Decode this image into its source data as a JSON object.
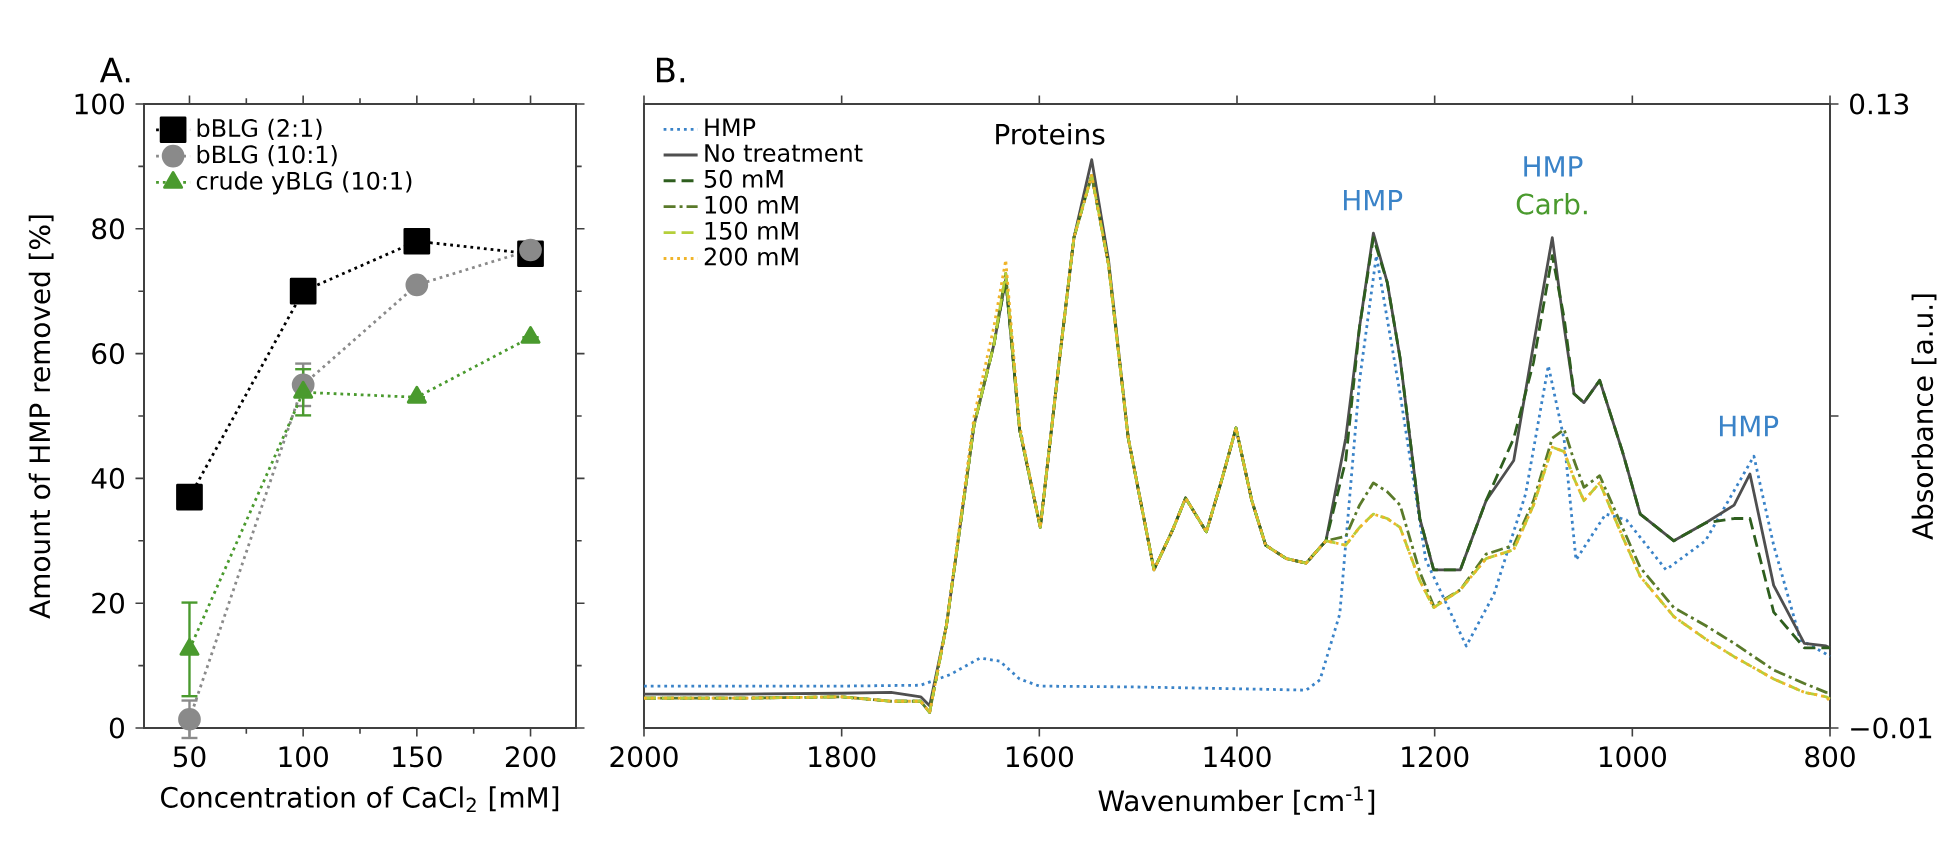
{
  "chart_data": [
    {
      "type": "line",
      "title": "A.",
      "xlabel": "Concentration of CaCl$_{2}$ [mM]",
      "ylabel": "Amount of HMP removed [%]",
      "xlim": [
        30,
        220
      ],
      "xticks": [
        50,
        100,
        150,
        200
      ],
      "ylim": [
        0,
        100
      ],
      "yticks": [
        0,
        20,
        40,
        60,
        80,
        100
      ],
      "legend": "top left",
      "line_style": "dotted",
      "series": [
        {
          "name": "bBLG (2:1)",
          "color": "#000000",
          "marker": "square",
          "x": [
            50,
            100,
            150,
            200
          ],
          "values": [
            37,
            70,
            78,
            76
          ]
        },
        {
          "name": "bBLG (10:1)",
          "color": "#8a8a8a",
          "marker": "circle",
          "x": [
            50,
            100,
            150,
            200
          ],
          "values": [
            1.4,
            55,
            71,
            76.6
          ],
          "errors": [
            3,
            3.4,
            null,
            null
          ]
        },
        {
          "name": "crude yBLG (10:1)",
          "color": "#4a9a2e",
          "marker": "triangle",
          "x": [
            50,
            100,
            150,
            200
          ],
          "values": [
            12.6,
            53.8,
            53,
            62.6
          ],
          "errors": [
            7.5,
            3.7,
            null,
            null
          ]
        }
      ]
    },
    {
      "type": "line",
      "title": "B.",
      "xlabel": "Wavenumber [cm$^{-1}$]",
      "y2label": "Absorbance [a.u.]",
      "xlim": [
        2000,
        800
      ],
      "xticks": [
        2000,
        1800,
        1600,
        1400,
        1200,
        1000,
        800
      ],
      "y2lim": [
        -0.01,
        0.13
      ],
      "y2ticks": [
        {
          "value": -0.01,
          "label": "−0.01"
        },
        {
          "value": 0.06,
          "label": null
        },
        0.13
      ],
      "legend": "top left",
      "annotations": [
        "Proteins",
        "HMP",
        "HMP",
        "Carb.",
        "HMP"
      ],
      "series": [
        {
          "name": "HMP",
          "color": "#3a83c8",
          "line_style": "dotted",
          "axis": "y2",
          "x": [
            2000,
            1800,
            1720,
            1690,
            1660,
            1640,
            1620,
            1600,
            1500,
            1400,
            1330,
            1316,
            1296,
            1276,
            1259,
            1235,
            1209,
            1168,
            1140,
            1108,
            1085,
            1069,
            1057,
            1027,
            1006,
            966,
            926,
            877,
            857,
            830,
            804,
            800
          ],
          "values": [
            -0.0006,
            -0.0006,
            -0.0004,
            0.002,
            0.0057,
            0.005,
            0.001,
            -0.0006,
            -0.0008,
            -0.0012,
            -0.0015,
            0.0008,
            0.0156,
            0.068,
            0.096,
            0.065,
            0.0277,
            0.0084,
            0.02,
            0.0425,
            0.0713,
            0.0547,
            0.0277,
            0.038,
            0.0367,
            0.0255,
            0.032,
            0.051,
            0.031,
            0.0098,
            0.0066,
            0.006
          ]
        },
        {
          "name": "No treatment",
          "color": "#4f4f4f",
          "line_style": "solid",
          "axis": "y2",
          "x": [
            2000,
            1900,
            1800,
            1750,
            1720,
            1711,
            1694,
            1666,
            1646,
            1634,
            1620,
            1599,
            1580,
            1565,
            1547,
            1530,
            1510,
            1484,
            1465,
            1452,
            1431,
            1415,
            1401,
            1385,
            1371,
            1350,
            1330,
            1310,
            1290,
            1276,
            1262,
            1248,
            1235,
            1215,
            1201,
            1174,
            1148,
            1120,
            1100,
            1081,
            1069,
            1059,
            1049,
            1033,
            1010,
            992,
            958,
            926,
            897,
            881,
            857,
            826,
            804,
            800
          ],
          "values": [
            -0.0024,
            -0.0024,
            -0.0022,
            -0.002,
            -0.003,
            -0.005,
            0.013,
            0.058,
            0.076,
            0.0906,
            0.057,
            0.035,
            0.072,
            0.1,
            0.1175,
            0.095,
            0.055,
            0.0255,
            0.0345,
            0.0416,
            0.034,
            0.046,
            0.0573,
            0.041,
            0.031,
            0.028,
            0.027,
            0.032,
            0.055,
            0.08,
            0.101,
            0.09,
            0.073,
            0.037,
            0.0255,
            0.0255,
            0.041,
            0.05,
            0.076,
            0.1,
            0.08,
            0.065,
            0.063,
            0.068,
            0.052,
            0.038,
            0.032,
            0.036,
            0.04,
            0.047,
            0.022,
            0.009,
            0.0084,
            0.008
          ]
        },
        {
          "name": "50 mM",
          "color": "#2e5e1e",
          "line_style": "dashed",
          "axis": "y2",
          "x": [
            2000,
            1900,
            1800,
            1750,
            1720,
            1711,
            1694,
            1666,
            1646,
            1634,
            1620,
            1599,
            1580,
            1565,
            1547,
            1530,
            1510,
            1484,
            1465,
            1452,
            1431,
            1415,
            1401,
            1385,
            1371,
            1350,
            1330,
            1310,
            1290,
            1276,
            1262,
            1248,
            1235,
            1215,
            1201,
            1174,
            1148,
            1120,
            1100,
            1081,
            1069,
            1059,
            1049,
            1033,
            1010,
            992,
            958,
            926,
            897,
            881,
            857,
            826,
            804,
            800
          ],
          "values": [
            -0.0033,
            -0.0033,
            -0.003,
            -0.004,
            -0.004,
            -0.0065,
            0.013,
            0.058,
            0.076,
            0.0906,
            0.057,
            0.035,
            0.072,
            0.1,
            0.114,
            0.094,
            0.055,
            0.0255,
            0.0345,
            0.0416,
            0.034,
            0.046,
            0.0573,
            0.041,
            0.031,
            0.028,
            0.027,
            0.032,
            0.05,
            0.08,
            0.1,
            0.09,
            0.073,
            0.037,
            0.0255,
            0.0255,
            0.041,
            0.055,
            0.072,
            0.096,
            0.082,
            0.065,
            0.063,
            0.068,
            0.052,
            0.038,
            0.032,
            0.036,
            0.037,
            0.037,
            0.016,
            0.008,
            0.008,
            0.008
          ]
        },
        {
          "name": "100 mM",
          "color": "#5a7a2a",
          "line_style": "dashdot",
          "axis": "y2",
          "x": [
            2000,
            1900,
            1800,
            1750,
            1720,
            1711,
            1694,
            1666,
            1646,
            1634,
            1620,
            1599,
            1580,
            1565,
            1547,
            1530,
            1510,
            1484,
            1465,
            1452,
            1431,
            1415,
            1401,
            1385,
            1371,
            1350,
            1330,
            1310,
            1290,
            1276,
            1262,
            1248,
            1235,
            1215,
            1201,
            1174,
            1148,
            1120,
            1100,
            1081,
            1069,
            1059,
            1049,
            1033,
            1010,
            992,
            958,
            926,
            897,
            881,
            857,
            826,
            804,
            800
          ],
          "values": [
            -0.0033,
            -0.0033,
            -0.003,
            -0.004,
            -0.004,
            -0.0065,
            0.013,
            0.058,
            0.076,
            0.092,
            0.057,
            0.035,
            0.072,
            0.1,
            0.114,
            0.094,
            0.055,
            0.0255,
            0.0345,
            0.0416,
            0.034,
            0.046,
            0.0573,
            0.041,
            0.031,
            0.028,
            0.027,
            0.032,
            0.033,
            0.04,
            0.045,
            0.043,
            0.04,
            0.025,
            0.0174,
            0.021,
            0.029,
            0.031,
            0.041,
            0.055,
            0.057,
            0.05,
            0.044,
            0.0466,
            0.035,
            0.026,
            0.017,
            0.013,
            0.009,
            0.0066,
            0.003,
            0,
            -0.002,
            -0.002
          ]
        },
        {
          "name": "150 mM",
          "color": "#b5cf3a",
          "line_style": "dashed",
          "axis": "y2",
          "x": [
            2000,
            1900,
            1800,
            1750,
            1720,
            1711,
            1694,
            1666,
            1646,
            1634,
            1620,
            1599,
            1580,
            1565,
            1547,
            1530,
            1510,
            1484,
            1465,
            1452,
            1431,
            1415,
            1401,
            1385,
            1371,
            1350,
            1330,
            1310,
            1290,
            1276,
            1262,
            1248,
            1235,
            1215,
            1201,
            1174,
            1148,
            1120,
            1100,
            1081,
            1069,
            1059,
            1049,
            1033,
            1010,
            992,
            958,
            926,
            897,
            881,
            857,
            826,
            804,
            800
          ],
          "values": [
            -0.0033,
            -0.0033,
            -0.003,
            -0.004,
            -0.004,
            -0.0065,
            0.013,
            0.058,
            0.076,
            0.092,
            0.057,
            0.035,
            0.072,
            0.1,
            0.114,
            0.094,
            0.055,
            0.0255,
            0.0345,
            0.0416,
            0.034,
            0.046,
            0.0573,
            0.041,
            0.031,
            0.028,
            0.027,
            0.032,
            0.031,
            0.035,
            0.038,
            0.037,
            0.035,
            0.023,
            0.017,
            0.021,
            0.028,
            0.03,
            0.04,
            0.053,
            0.052,
            0.046,
            0.041,
            0.045,
            0.033,
            0.024,
            0.015,
            0.01,
            0.006,
            0.004,
            0.001,
            -0.002,
            -0.003,
            -0.0035
          ]
        },
        {
          "name": "200 mM",
          "color": "#f0b429",
          "line_style": "dotted",
          "axis": "y2",
          "x": [
            2000,
            1900,
            1800,
            1750,
            1720,
            1711,
            1694,
            1666,
            1646,
            1634,
            1620,
            1599,
            1580,
            1565,
            1547,
            1530,
            1510,
            1484,
            1465,
            1452,
            1431,
            1415,
            1401,
            1385,
            1371,
            1350,
            1330,
            1310,
            1290,
            1276,
            1262,
            1248,
            1235,
            1215,
            1201,
            1174,
            1148,
            1120,
            1100,
            1081,
            1069,
            1059,
            1049,
            1033,
            1010,
            992,
            958,
            926,
            897,
            881,
            857,
            826,
            804,
            800
          ],
          "values": [
            -0.0033,
            -0.0033,
            -0.003,
            -0.004,
            -0.004,
            -0.0065,
            0.013,
            0.06,
            0.08,
            0.095,
            0.058,
            0.035,
            0.072,
            0.1,
            0.114,
            0.094,
            0.055,
            0.0255,
            0.0345,
            0.0416,
            0.034,
            0.046,
            0.0573,
            0.041,
            0.031,
            0.028,
            0.027,
            0.032,
            0.031,
            0.035,
            0.038,
            0.037,
            0.035,
            0.023,
            0.017,
            0.021,
            0.028,
            0.03,
            0.04,
            0.053,
            0.052,
            0.046,
            0.041,
            0.045,
            0.033,
            0.024,
            0.015,
            0.01,
            0.006,
            0.004,
            0.001,
            -0.002,
            -0.003,
            -0.004
          ]
        }
      ]
    }
  ]
}
